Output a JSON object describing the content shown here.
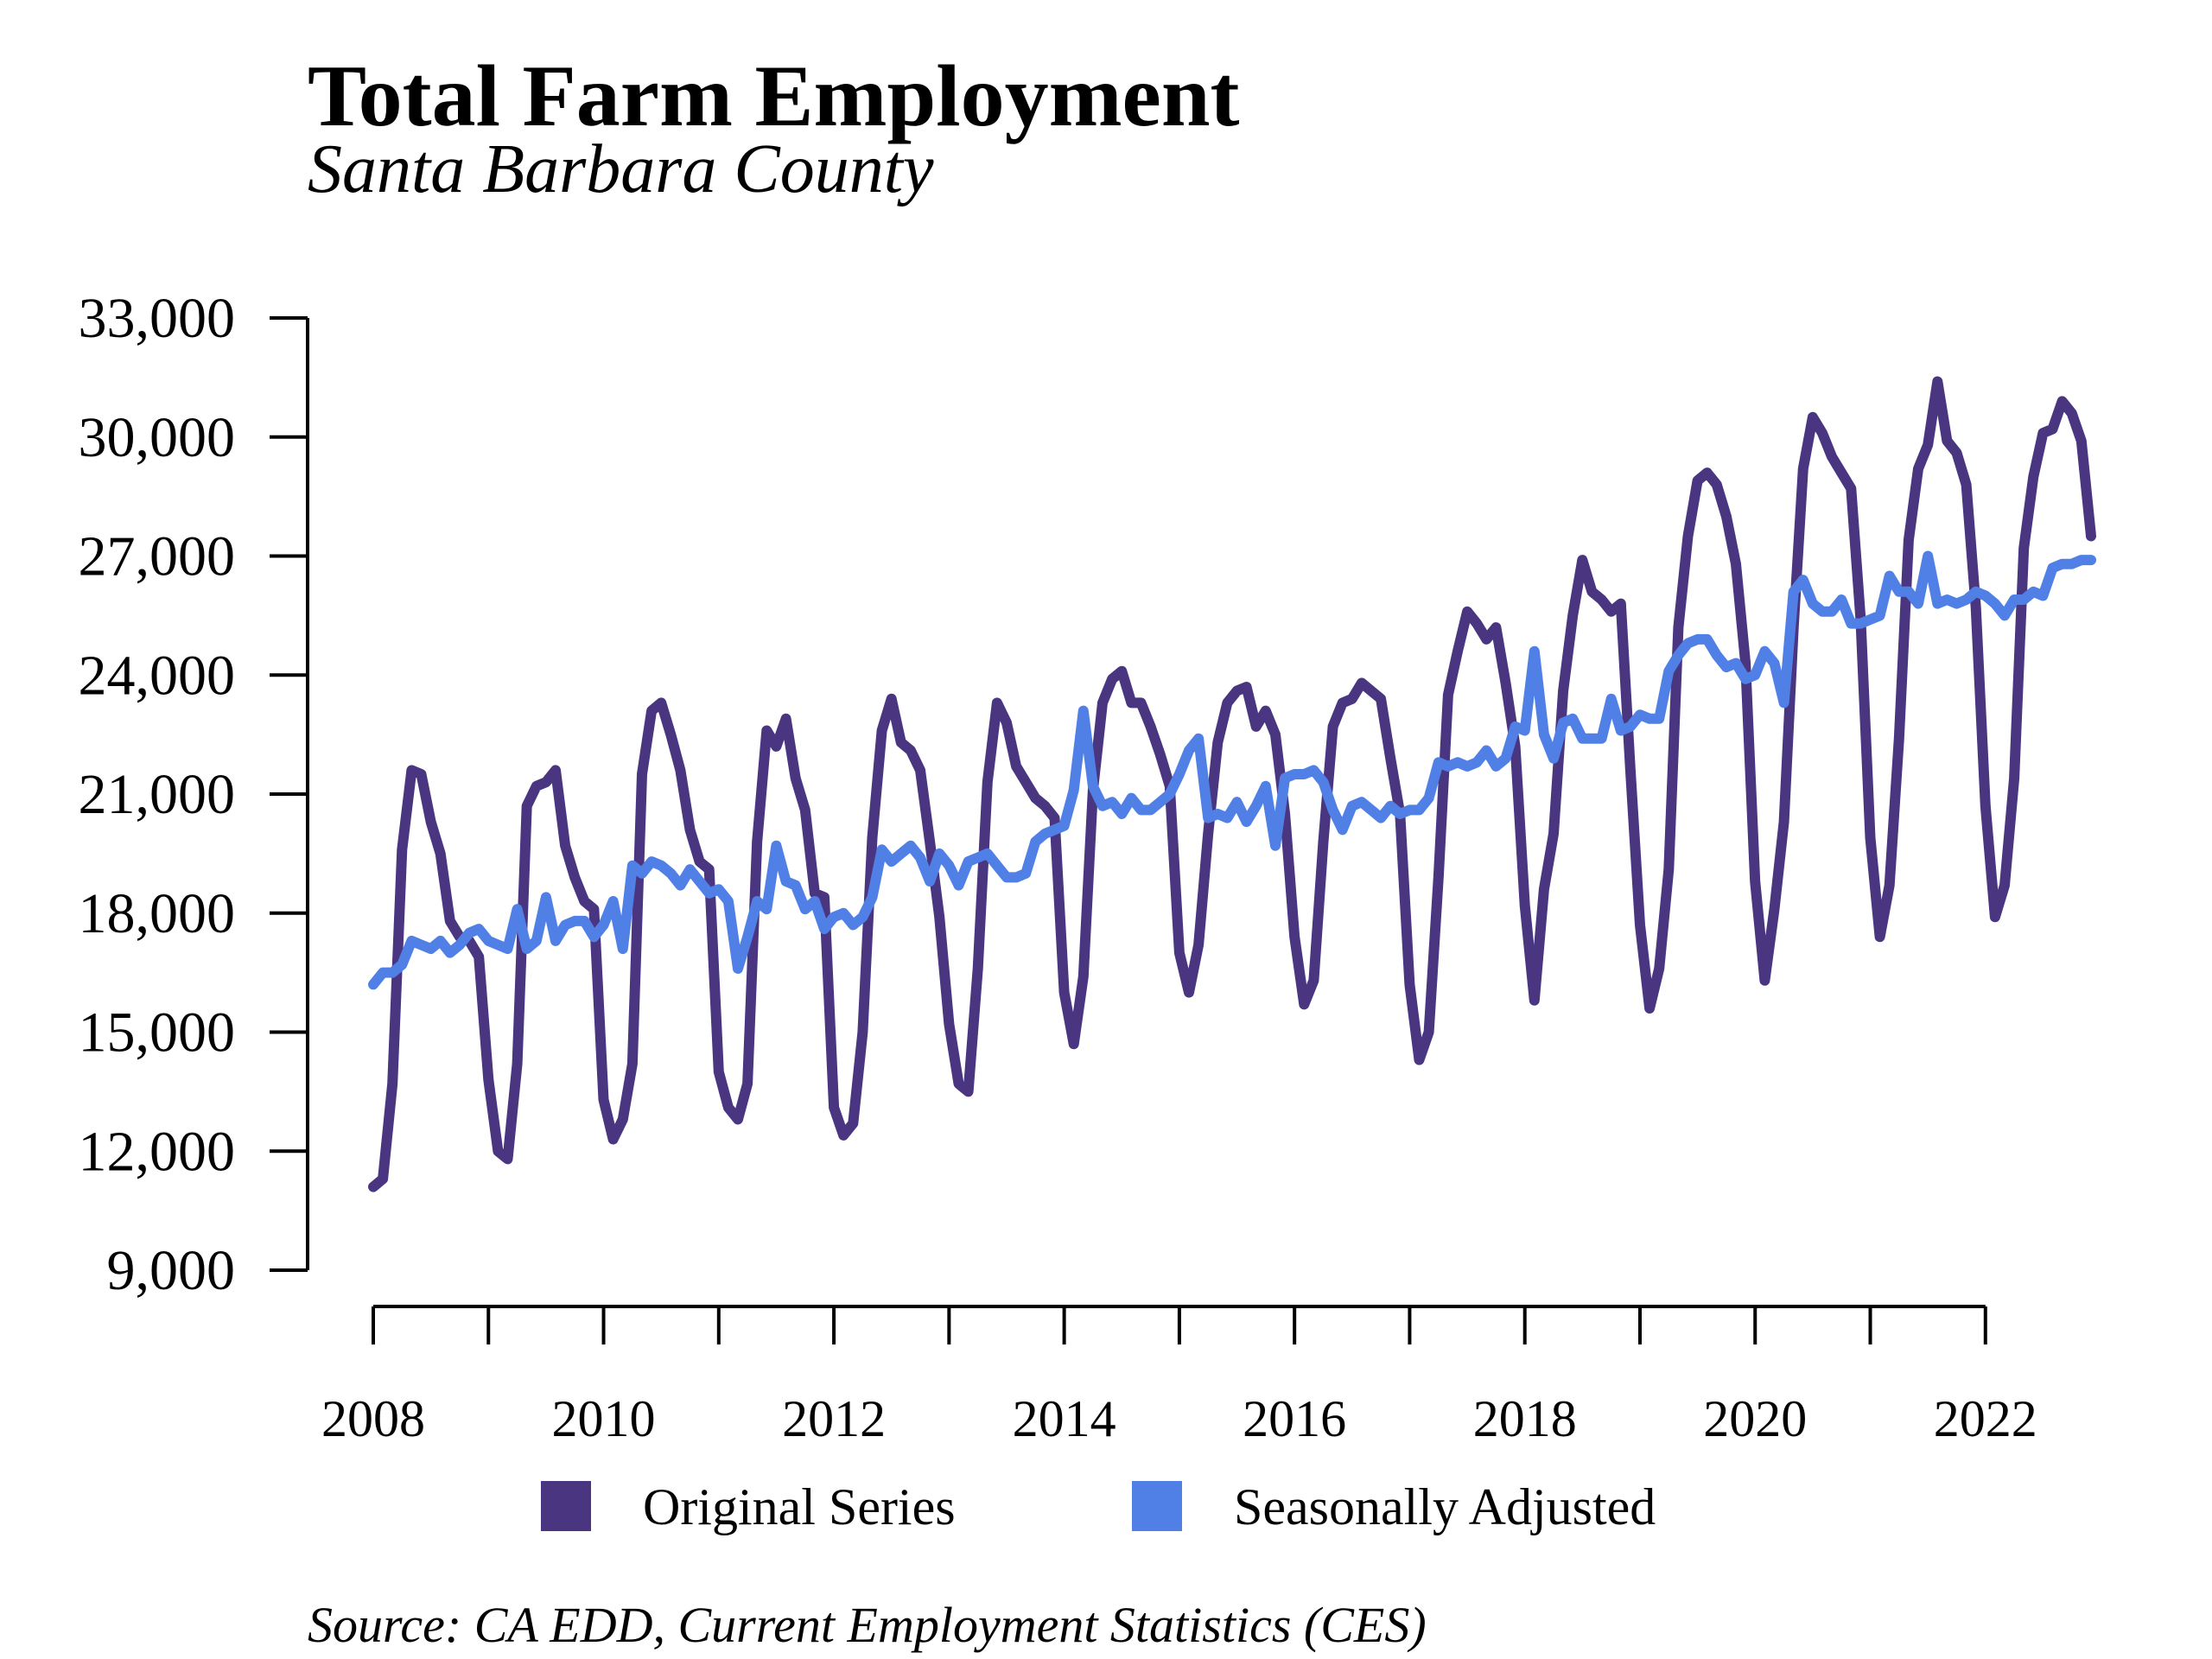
{
  "chart_data": {
    "type": "line",
    "title": "Total Farm Employment",
    "subtitle": "Santa Barbara County",
    "source": "Source: CA EDD, Current Employment Statistics (CES)",
    "xlabel": "",
    "ylabel": "",
    "ylim": [
      9000,
      33000
    ],
    "xlim": [
      2008,
      2022.917
    ],
    "y_ticks": [
      9000,
      12000,
      15000,
      18000,
      21000,
      24000,
      27000,
      30000,
      33000
    ],
    "y_tick_labels": [
      "9,000",
      "12,000",
      "15,000",
      "18,000",
      "21,000",
      "24,000",
      "27,000",
      "30,000",
      "33,000"
    ],
    "x_ticks": [
      2008,
      2009,
      2010,
      2011,
      2012,
      2013,
      2014,
      2015,
      2016,
      2017,
      2018,
      2019,
      2020,
      2021,
      2022
    ],
    "x_tick_labels": [
      "2008",
      "",
      "2010",
      "",
      "2012",
      "",
      "2014",
      "",
      "2016",
      "",
      "2018",
      "",
      "2020",
      "",
      "2022"
    ],
    "grid": false,
    "legend_position": "bottom",
    "x_start_year": 2008,
    "x_step": "month",
    "series": [
      {
        "name": "Original Series",
        "color": "#4a3580",
        "values": [
          11100,
          11300,
          13700,
          19600,
          21600,
          21500,
          20300,
          19500,
          17800,
          17400,
          17300,
          16900,
          13800,
          12000,
          11800,
          14200,
          20700,
          21200,
          21300,
          21600,
          19700,
          18900,
          18300,
          18100,
          13300,
          12300,
          12800,
          14200,
          21500,
          23100,
          23300,
          22500,
          21600,
          20100,
          19300,
          19100,
          14000,
          13100,
          12800,
          13700,
          19800,
          22600,
          22200,
          22900,
          21400,
          20600,
          18500,
          18400,
          13100,
          12400,
          12700,
          15000,
          19900,
          22600,
          23400,
          22300,
          22100,
          21600,
          19800,
          17900,
          15200,
          13700,
          13500,
          16600,
          21300,
          23300,
          22800,
          21700,
          21300,
          20900,
          20700,
          20400,
          16000,
          14700,
          16400,
          21100,
          23300,
          23900,
          24100,
          23300,
          23300,
          22700,
          22000,
          21200,
          17000,
          16000,
          17200,
          20000,
          22300,
          23300,
          23600,
          23700,
          22700,
          23100,
          22500,
          20500,
          17400,
          15700,
          16300,
          19800,
          22700,
          23300,
          23400,
          23800,
          23600,
          23400,
          21900,
          20500,
          16200,
          14300,
          15000,
          18900,
          23500,
          24600,
          25600,
          25300,
          24900,
          25200,
          23800,
          22200,
          18200,
          15800,
          18600,
          20000,
          23600,
          25500,
          26900,
          26100,
          25900,
          25600,
          25800,
          21600,
          17700,
          15600,
          16600,
          19100,
          25200,
          27500,
          28900,
          29100,
          28800,
          28000,
          26800,
          24300,
          18800,
          16300,
          18100,
          20300,
          25200,
          29200,
          30500,
          30100,
          29500,
          29100,
          28700,
          25400,
          19900,
          17400,
          18700,
          22400,
          27400,
          29200,
          29800,
          31400,
          29900,
          29600,
          28800,
          25700,
          20700,
          17900,
          18700,
          21400,
          27200,
          29000,
          30100,
          30200,
          30900,
          30600,
          29900,
          27500
        ]
      },
      {
        "name": "Seasonally Adjusted",
        "color": "#5080e6",
        "values": [
          16200,
          16500,
          16500,
          16700,
          17300,
          17200,
          17100,
          17300,
          17000,
          17200,
          17500,
          17600,
          17300,
          17200,
          17100,
          18100,
          17100,
          17300,
          18400,
          17300,
          17700,
          17800,
          17800,
          17400,
          17700,
          18300,
          17100,
          19200,
          19000,
          19300,
          19200,
          19000,
          18700,
          19100,
          18800,
          18500,
          18600,
          18300,
          16600,
          17400,
          18300,
          18100,
          19700,
          18800,
          18700,
          18100,
          18300,
          17600,
          17900,
          18000,
          17700,
          17900,
          18400,
          19600,
          19300,
          19500,
          19700,
          19400,
          18800,
          19500,
          19200,
          18700,
          19300,
          19400,
          19500,
          19200,
          18900,
          18900,
          19000,
          19800,
          20000,
          20100,
          20200,
          21100,
          23100,
          21200,
          20700,
          20800,
          20500,
          20900,
          20600,
          20600,
          20800,
          21000,
          21500,
          22100,
          22400,
          20400,
          20500,
          20400,
          20800,
          20300,
          20700,
          21200,
          19700,
          21400,
          21500,
          21500,
          21600,
          21300,
          20600,
          20100,
          20700,
          20800,
          20600,
          20400,
          20700,
          20500,
          20600,
          20600,
          20900,
          21800,
          21700,
          21800,
          21700,
          21800,
          22100,
          21700,
          21900,
          22700,
          22600,
          24600,
          22500,
          21900,
          22800,
          22900,
          22400,
          22400,
          22400,
          23400,
          22600,
          22700,
          23000,
          22900,
          22900,
          24100,
          24500,
          24800,
          24900,
          24900,
          24500,
          24200,
          24300,
          23900,
          24000,
          24600,
          24300,
          23300,
          26100,
          26400,
          25800,
          25600,
          25600,
          25900,
          25300,
          25300,
          25400,
          25500,
          26500,
          26100,
          26100,
          25800,
          27000,
          25800,
          25900,
          25800,
          25900,
          26100,
          26000,
          25800,
          25500,
          25900,
          25900,
          26100,
          26000,
          26700,
          26800,
          26800,
          26900,
          26900
        ]
      }
    ]
  }
}
